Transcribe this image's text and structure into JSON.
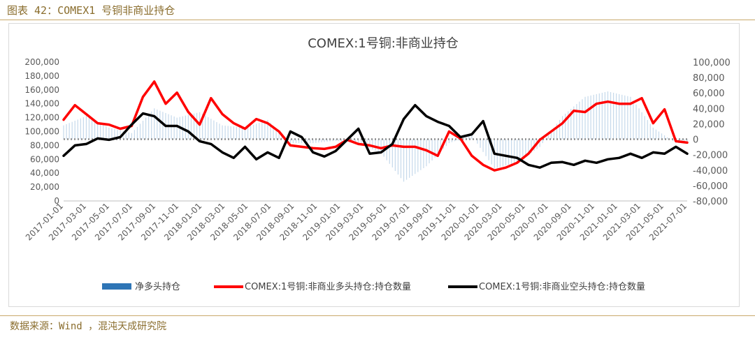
{
  "figure_title": "图表 42：COMEX1 号铜非商业持仓",
  "source": "数据来源：Wind ，混沌天成研究院",
  "chart_data": {
    "type": "line",
    "title": "COMEX:1号铜:非商业持仓",
    "left_axis": {
      "ylim": [
        0,
        200000
      ],
      "ticks": [
        "0",
        "20,000",
        "40,000",
        "60,000",
        "80,000",
        "100,000",
        "120,000",
        "140,000",
        "160,000",
        "180,000",
        "200,000"
      ]
    },
    "right_axis": {
      "ylim": [
        -80000,
        100000
      ],
      "ticks": [
        "-80,000",
        "-60,000",
        "-40,000",
        "-20,000",
        "0",
        "20,000",
        "40,000",
        "60,000",
        "80,000",
        "100,000"
      ]
    },
    "x_ticks": [
      "2017-01-01",
      "2017-03-01",
      "2017-05-01",
      "2017-07-01",
      "2017-09-01",
      "2017-11-01",
      "2018-01-01",
      "2018-03-01",
      "2018-05-01",
      "2018-07-01",
      "2018-09-01",
      "2018-11-01",
      "2019-01-01",
      "2019-03-01",
      "2019-05-01",
      "2019-07-01",
      "2019-09-01",
      "2019-11-01",
      "2020-01-01",
      "2020-03-01",
      "2020-05-01",
      "2020-07-01",
      "2020-09-01",
      "2020-11-01",
      "2021-01-01",
      "2021-03-01",
      "2021-05-01",
      "2021-07-01"
    ],
    "x_month_range": [
      0,
      55
    ],
    "zero_line": "dotted",
    "legend_placement": "bottom",
    "colors": {
      "net": "#2e75b6",
      "long": "#ff0000",
      "short": "#000000"
    },
    "series": [
      {
        "name": "净多头持仓",
        "type": "bar",
        "axis": "right",
        "month_index": [
          0,
          2,
          4,
          6,
          8,
          10,
          12,
          14,
          16,
          18,
          20,
          22,
          24,
          26,
          28,
          30,
          32,
          34,
          36,
          38,
          40,
          42,
          44,
          46,
          48,
          50,
          52,
          54,
          55
        ],
        "values": [
          18000,
          30000,
          15000,
          8000,
          40000,
          28000,
          35000,
          18000,
          15000,
          25000,
          -5000,
          -5000,
          -2000,
          -5000,
          -18000,
          -55000,
          -35000,
          -5000,
          5000,
          -38000,
          -30000,
          -10000,
          30000,
          55000,
          62000,
          55000,
          15000,
          -5000,
          -5000
        ]
      },
      {
        "name": "COMEX:1号铜:非商业多头持仓:持仓数量",
        "axis": "left",
        "month_index": [
          0,
          1,
          2,
          3,
          4,
          5,
          6,
          7,
          8,
          9,
          10,
          11,
          12,
          13,
          14,
          15,
          16,
          17,
          18,
          19,
          20,
          21,
          22,
          23,
          24,
          25,
          26,
          27,
          28,
          29,
          30,
          31,
          32,
          33,
          34,
          35,
          36,
          37,
          38,
          39,
          40,
          41,
          42,
          43,
          44,
          45,
          46,
          47,
          48,
          49,
          50,
          51,
          52,
          53,
          54,
          55
        ],
        "values": [
          117000,
          138000,
          125000,
          112000,
          110000,
          104000,
          108000,
          150000,
          172000,
          140000,
          156000,
          128000,
          110000,
          148000,
          125000,
          112000,
          104000,
          118000,
          112000,
          100000,
          80000,
          78000,
          76000,
          75000,
          78000,
          88000,
          82000,
          80000,
          76000,
          80000,
          78000,
          78000,
          73000,
          65000,
          100000,
          90000,
          65000,
          52000,
          44000,
          48000,
          55000,
          68000,
          88000,
          100000,
          112000,
          130000,
          128000,
          140000,
          143000,
          140000,
          140000,
          148000,
          112000,
          132000,
          86000,
          84000
        ]
      },
      {
        "name": "COMEX:1号铜:非商业空头持仓:持仓数量",
        "axis": "left",
        "month_index": [
          0,
          1,
          2,
          3,
          4,
          5,
          6,
          7,
          8,
          9,
          10,
          11,
          12,
          13,
          14,
          15,
          16,
          17,
          18,
          19,
          20,
          21,
          22,
          23,
          24,
          25,
          26,
          27,
          28,
          29,
          30,
          31,
          32,
          33,
          34,
          35,
          36,
          37,
          38,
          39,
          40,
          41,
          42,
          43,
          44,
          45,
          46,
          47,
          48,
          49,
          50,
          51,
          52,
          53,
          54,
          55
        ],
        "values": [
          65000,
          80000,
          82000,
          90000,
          88000,
          92000,
          110000,
          126000,
          122000,
          108000,
          108000,
          100000,
          86000,
          82000,
          70000,
          62000,
          78000,
          60000,
          70000,
          62000,
          100000,
          92000,
          70000,
          64000,
          72000,
          88000,
          104000,
          68000,
          70000,
          82000,
          118000,
          138000,
          122000,
          114000,
          108000,
          92000,
          96000,
          115000,
          68000,
          65000,
          62000,
          52000,
          48000,
          55000,
          56000,
          52000,
          58000,
          55000,
          60000,
          62000,
          68000,
          62000,
          70000,
          68000,
          78000,
          68000
        ]
      }
    ]
  }
}
